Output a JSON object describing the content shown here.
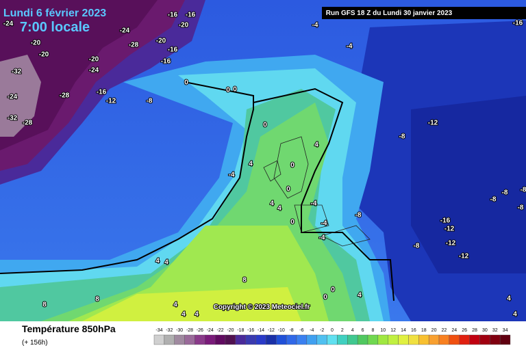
{
  "header": {
    "date": "Lundi 6 février 2023",
    "time": "7:00 locale",
    "run": "Run GFS 18 Z du Lundi 30 janvier 2023"
  },
  "footer": {
    "field": "Température 850hPa",
    "lead": "(+ 156h)",
    "copyright": "Copyright © 2023 Meteociel.fr"
  },
  "map": {
    "labels": [
      "-24",
      "-20",
      "-20",
      "-16",
      "-16",
      "-20",
      "-24",
      "-20",
      "-28",
      "-16",
      "-16",
      "-20",
      "-24",
      "-24",
      "-28",
      "-32",
      "-32",
      "-28",
      "-16",
      "-12",
      "-8",
      "-4",
      "-4",
      "-16",
      "0",
      "0",
      "0",
      "0",
      "-8",
      "-12",
      "4",
      "4",
      "-4",
      "0",
      "0",
      "-4",
      "4",
      "4",
      "0",
      "-4",
      "-4",
      "-8",
      "-16",
      "-12",
      "-12",
      "-12",
      "-8",
      "-8",
      "-8",
      "-8",
      "-8",
      "4",
      "4",
      "8",
      "8",
      "8",
      "4",
      "4",
      "4",
      "0",
      "0",
      "4",
      "4",
      "4"
    ]
  },
  "scale": {
    "labels": [
      -34,
      -32,
      -30,
      -28,
      -26,
      -24,
      -22,
      -20,
      -18,
      -16,
      -14,
      -12,
      -10,
      -8,
      -6,
      -4,
      -2,
      0,
      2,
      4,
      6,
      8,
      10,
      12,
      14,
      16,
      18,
      20,
      22,
      24,
      26,
      28,
      30,
      32,
      34
    ],
    "colors": [
      "#d0d0d0",
      "#b0b0b0",
      "#a08aa0",
      "#9a6a9a",
      "#8a3a8a",
      "#7a1a7a",
      "#600a60",
      "#501050",
      "#4a2a9a",
      "#3a3ab0",
      "#2a3ac8",
      "#1a30a8",
      "#2050d8",
      "#3068e8",
      "#3a80f0",
      "#40a0f0",
      "#50c0f0",
      "#60e0f0",
      "#40d0c0",
      "#40c890",
      "#50c860",
      "#70d850",
      "#a0e840",
      "#c0f040",
      "#e0f040",
      "#f0e040",
      "#f8c030",
      "#f8a030",
      "#f88020",
      "#f05010",
      "#e02010",
      "#c00010",
      "#a00010",
      "#800010",
      "#600010"
    ]
  }
}
